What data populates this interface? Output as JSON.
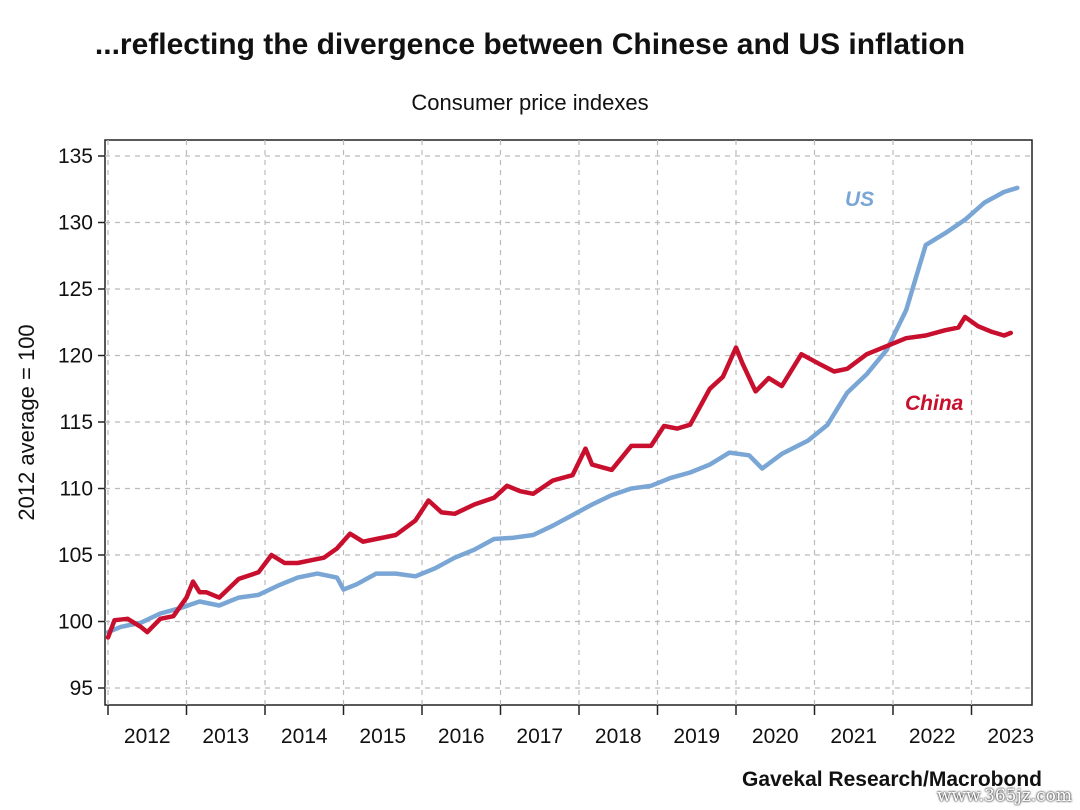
{
  "chart_data": {
    "type": "line",
    "title": "...reflecting the divergence between Chinese and US inflation",
    "subtitle": "Consumer price indexes",
    "ylabel": "2012 average = 100",
    "xlabel": "",
    "source": "Gavekal Research/Macrobond",
    "ylim": [
      95,
      135
    ],
    "yticks": [
      95,
      100,
      105,
      110,
      115,
      120,
      125,
      130,
      135
    ],
    "xticks": [
      "2012",
      "2013",
      "2014",
      "2015",
      "2016",
      "2017",
      "2018",
      "2019",
      "2020",
      "2021",
      "2022",
      "2023"
    ],
    "grid": true,
    "colors": {
      "US": "#7aa6d6",
      "China": "#c8102e"
    },
    "series": [
      {
        "name": "US",
        "x": [
          "2012-01",
          "2012-03",
          "2012-06",
          "2012-09",
          "2012-12",
          "2013-03",
          "2013-06",
          "2013-09",
          "2013-12",
          "2014-03",
          "2014-06",
          "2014-09",
          "2014-12",
          "2015-01",
          "2015-03",
          "2015-06",
          "2015-09",
          "2015-12",
          "2016-03",
          "2016-06",
          "2016-09",
          "2016-12",
          "2017-03",
          "2017-06",
          "2017-09",
          "2017-12",
          "2018-03",
          "2018-06",
          "2018-09",
          "2018-12",
          "2019-03",
          "2019-06",
          "2019-09",
          "2019-12",
          "2020-03",
          "2020-05",
          "2020-08",
          "2020-12",
          "2021-03",
          "2021-06",
          "2021-09",
          "2021-12",
          "2022-03",
          "2022-06",
          "2022-09",
          "2022-12",
          "2023-03",
          "2023-06",
          "2023-08"
        ],
        "values": [
          99.2,
          99.6,
          99.9,
          100.6,
          101.0,
          101.5,
          101.2,
          101.8,
          102.0,
          102.7,
          103.3,
          103.6,
          103.3,
          102.4,
          102.8,
          103.6,
          103.6,
          103.4,
          104.0,
          104.8,
          105.4,
          106.2,
          106.3,
          106.5,
          107.2,
          108.0,
          108.8,
          109.5,
          110.0,
          110.2,
          110.8,
          111.2,
          111.8,
          112.7,
          112.5,
          111.5,
          112.6,
          113.6,
          114.8,
          117.2,
          118.6,
          120.4,
          123.4,
          128.3,
          129.2,
          130.2,
          131.5,
          132.3,
          132.6
        ]
      },
      {
        "name": "China",
        "x": [
          "2012-01",
          "2012-02",
          "2012-04",
          "2012-06",
          "2012-07",
          "2012-09",
          "2012-11",
          "2013-01",
          "2013-02",
          "2013-03",
          "2013-04",
          "2013-06",
          "2013-09",
          "2013-12",
          "2014-02",
          "2014-04",
          "2014-06",
          "2014-08",
          "2014-10",
          "2014-12",
          "2015-02",
          "2015-04",
          "2015-06",
          "2015-09",
          "2015-12",
          "2016-02",
          "2016-04",
          "2016-06",
          "2016-09",
          "2016-12",
          "2017-02",
          "2017-04",
          "2017-06",
          "2017-09",
          "2017-12",
          "2018-02",
          "2018-03",
          "2018-06",
          "2018-09",
          "2018-12",
          "2019-02",
          "2019-04",
          "2019-06",
          "2019-09",
          "2019-11",
          "2020-01",
          "2020-02",
          "2020-04",
          "2020-06",
          "2020-08",
          "2020-11",
          "2021-02",
          "2021-04",
          "2021-06",
          "2021-09",
          "2021-12",
          "2022-03",
          "2022-06",
          "2022-09",
          "2022-11",
          "2022-12",
          "2023-02",
          "2023-04",
          "2023-06",
          "2023-07"
        ],
        "values": [
          98.8,
          100.1,
          100.2,
          99.6,
          99.2,
          100.2,
          100.4,
          101.8,
          103.0,
          102.2,
          102.2,
          101.8,
          103.2,
          103.7,
          105.0,
          104.4,
          104.4,
          104.6,
          104.8,
          105.5,
          106.6,
          106.0,
          106.2,
          106.5,
          107.6,
          109.1,
          108.2,
          108.1,
          108.8,
          109.3,
          110.2,
          109.8,
          109.6,
          110.6,
          111.0,
          113.0,
          111.8,
          111.4,
          113.2,
          113.2,
          114.7,
          114.5,
          114.8,
          117.5,
          118.4,
          120.6,
          119.4,
          117.3,
          118.3,
          117.7,
          120.1,
          119.3,
          118.8,
          119.0,
          120.1,
          120.7,
          121.3,
          121.5,
          121.9,
          122.1,
          122.9,
          122.2,
          121.8,
          121.5,
          121.7
        ]
      }
    ]
  }
}
